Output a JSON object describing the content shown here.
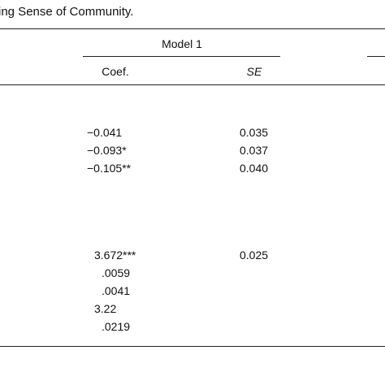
{
  "caption": "ing Sense of Community.",
  "header": {
    "model_label": "Model 1",
    "coef_label": "Coef.",
    "se_label": "SE"
  },
  "rows": [
    {
      "coef": "−0.041",
      "se": "0.035"
    },
    {
      "coef": "−0.093*",
      "se": "0.037"
    },
    {
      "coef": "−0.105**",
      "se": "0.040"
    },
    {
      "coef": "3.672***",
      "se": "0.025"
    },
    {
      "coef": ".0059",
      "se": ""
    },
    {
      "coef": ".0041",
      "se": ""
    },
    {
      "coef": "3.22",
      "se": ""
    },
    {
      "coef": ".0219",
      "se": ""
    }
  ]
}
